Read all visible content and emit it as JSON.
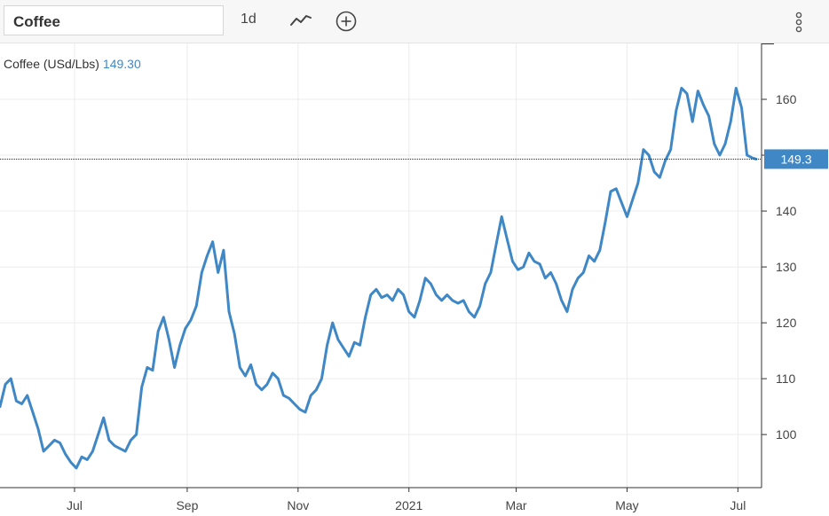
{
  "toolbar": {
    "symbol": "Coffee",
    "interval": "1d",
    "chart_type_icon": "line-chart-icon",
    "add_icon": "plus-circle-icon",
    "menu_icon": "vertical-dots-icon"
  },
  "legend": {
    "label": "Coffee (USd/Lbs)",
    "value": "149.30"
  },
  "colors": {
    "line": "#3f88c5",
    "last_price_line": "#1a237e",
    "last_price_badge": "#3f88c5",
    "grid": "#ececec",
    "axis": "#333333"
  },
  "chart_data": {
    "type": "line",
    "title": "",
    "xlabel": "",
    "ylabel": "",
    "ylim": [
      90.5,
      170
    ],
    "yticks": [
      100,
      110,
      120,
      130,
      140,
      150,
      160
    ],
    "ytick_labels": [
      "100",
      "110",
      "120",
      "130",
      "140",
      "",
      "160"
    ],
    "xtick_labels": [
      "Jul",
      "Sep",
      "Nov",
      "2021",
      "Mar",
      "May",
      "Jul"
    ],
    "xtick_dates": [
      "2020-07-01",
      "2020-09-01",
      "2020-11-01",
      "2021-01-01",
      "2021-03-01",
      "2021-05-01",
      "2021-07-01"
    ],
    "x_start": "2020-05-21",
    "x_end": "2021-07-14",
    "last_value": 149.3,
    "last_value_label": "149.3",
    "series": [
      {
        "x": [
          "2020-05-21",
          "2020-05-24",
          "2020-05-27",
          "2020-05-30",
          "2020-06-02",
          "2020-06-05",
          "2020-06-08",
          "2020-06-11",
          "2020-06-14",
          "2020-06-17",
          "2020-06-20",
          "2020-06-23",
          "2020-06-26",
          "2020-06-29",
          "2020-07-02",
          "2020-07-05",
          "2020-07-08",
          "2020-07-11",
          "2020-07-14",
          "2020-07-17",
          "2020-07-20",
          "2020-07-23",
          "2020-07-26",
          "2020-07-29",
          "2020-08-01",
          "2020-08-04",
          "2020-08-07",
          "2020-08-10",
          "2020-08-13",
          "2020-08-16",
          "2020-08-19",
          "2020-08-22",
          "2020-08-25",
          "2020-08-28",
          "2020-08-31",
          "2020-09-03",
          "2020-09-06",
          "2020-09-09",
          "2020-09-12",
          "2020-09-15",
          "2020-09-18",
          "2020-09-21",
          "2020-09-24",
          "2020-09-27",
          "2020-09-30",
          "2020-10-03",
          "2020-10-06",
          "2020-10-09",
          "2020-10-12",
          "2020-10-15",
          "2020-10-18",
          "2020-10-21",
          "2020-10-24",
          "2020-10-27",
          "2020-10-30",
          "2020-11-02",
          "2020-11-05",
          "2020-11-08",
          "2020-11-11",
          "2020-11-14",
          "2020-11-17",
          "2020-11-20",
          "2020-11-23",
          "2020-11-26",
          "2020-11-29",
          "2020-12-02",
          "2020-12-05",
          "2020-12-08",
          "2020-12-11",
          "2020-12-14",
          "2020-12-17",
          "2020-12-20",
          "2020-12-23",
          "2020-12-26",
          "2020-12-29",
          "2021-01-01",
          "2021-01-04",
          "2021-01-07",
          "2021-01-10",
          "2021-01-13",
          "2021-01-16",
          "2021-01-19",
          "2021-01-22",
          "2021-01-25",
          "2021-01-28",
          "2021-01-31",
          "2021-02-03",
          "2021-02-06",
          "2021-02-09",
          "2021-02-12",
          "2021-02-15",
          "2021-02-18",
          "2021-02-21",
          "2021-02-24",
          "2021-02-27",
          "2021-03-02",
          "2021-03-05",
          "2021-03-08",
          "2021-03-11",
          "2021-03-14",
          "2021-03-17",
          "2021-03-20",
          "2021-03-23",
          "2021-03-26",
          "2021-03-29",
          "2021-04-01",
          "2021-04-04",
          "2021-04-07",
          "2021-04-10",
          "2021-04-13",
          "2021-04-16",
          "2021-04-19",
          "2021-04-22",
          "2021-04-25",
          "2021-04-28",
          "2021-05-01",
          "2021-05-04",
          "2021-05-07",
          "2021-05-10",
          "2021-05-13",
          "2021-05-16",
          "2021-05-19",
          "2021-05-22",
          "2021-05-25",
          "2021-05-28",
          "2021-05-31",
          "2021-06-03",
          "2021-06-06",
          "2021-06-09",
          "2021-06-12",
          "2021-06-15",
          "2021-06-18",
          "2021-06-21",
          "2021-06-24",
          "2021-06-27",
          "2021-06-30",
          "2021-07-03",
          "2021-07-06",
          "2021-07-09",
          "2021-07-11"
        ],
        "values": [
          105.0,
          109.0,
          110.0,
          106.0,
          105.5,
          107.0,
          104.0,
          101.0,
          97.0,
          98.0,
          99.0,
          98.5,
          96.5,
          95.0,
          94.0,
          96.0,
          95.5,
          97.0,
          100.0,
          103.0,
          99.0,
          98.0,
          97.5,
          97.0,
          99.0,
          100.0,
          108.5,
          112.0,
          111.5,
          118.5,
          121.0,
          117.0,
          112.0,
          116.0,
          119.0,
          120.5,
          123.0,
          129.0,
          132.0,
          134.5,
          129.0,
          133.0,
          122.0,
          118.0,
          112.0,
          110.5,
          112.5,
          109.0,
          108.0,
          109.0,
          111.0,
          110.0,
          107.0,
          106.5,
          105.5,
          104.5,
          104.0,
          107.0,
          108.0,
          110.0,
          116.0,
          120.0,
          117.0,
          115.5,
          114.0,
          116.5,
          116.0,
          121.0,
          125.0,
          126.0,
          124.5,
          125.0,
          124.0,
          126.0,
          125.0,
          122.0,
          121.0,
          124.0,
          128.0,
          127.0,
          125.0,
          124.0,
          125.0,
          124.0,
          123.5,
          124.0,
          122.0,
          121.0,
          123.0,
          127.0,
          129.0,
          134.0,
          139.0,
          135.0,
          131.0,
          129.5,
          130.0,
          132.5,
          131.0,
          130.5,
          128.0,
          129.0,
          127.0,
          124.0,
          122.0,
          126.0,
          128.0,
          129.0,
          132.0,
          131.0,
          133.0,
          138.0,
          143.5,
          144.0,
          141.5,
          139.0,
          142.0,
          145.0,
          151.0,
          150.0,
          147.0,
          146.0,
          149.0,
          151.0,
          158.0,
          162.0,
          161.0,
          156.0,
          161.5,
          159.0,
          157.0,
          152.0,
          150.0,
          152.0,
          156.0,
          162.0,
          158.5,
          150.0,
          149.5,
          149.3
        ]
      }
    ]
  }
}
